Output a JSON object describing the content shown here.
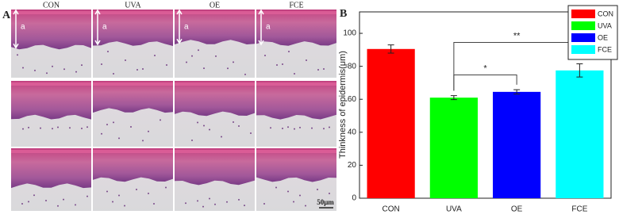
{
  "panel_a": {
    "label": "A",
    "columns": [
      "CON",
      "UVA",
      "OE",
      "FCE"
    ],
    "marker": "a",
    "scale_bar": "50μm"
  },
  "chart_data": {
    "type": "bar",
    "panel_label": "B",
    "ylabel": "Thinkness of epidermis(μm)",
    "categories": [
      "CON",
      "UVA",
      "OE",
      "FCE"
    ],
    "values": [
      90.5,
      61,
      64.5,
      77.5
    ],
    "errors": [
      2.5,
      1.2,
      1.3,
      4
    ],
    "colors": [
      "#ff0000",
      "#00ff00",
      "#0000ff",
      "#00ffff"
    ],
    "ylim": [
      0,
      113
    ],
    "yticks": [
      0,
      20,
      40,
      60,
      80,
      100
    ],
    "legend": "top-right",
    "annotations": [
      {
        "text": "*",
        "between": [
          1,
          2
        ]
      },
      {
        "text": "**",
        "between": [
          1,
          3
        ]
      }
    ]
  }
}
